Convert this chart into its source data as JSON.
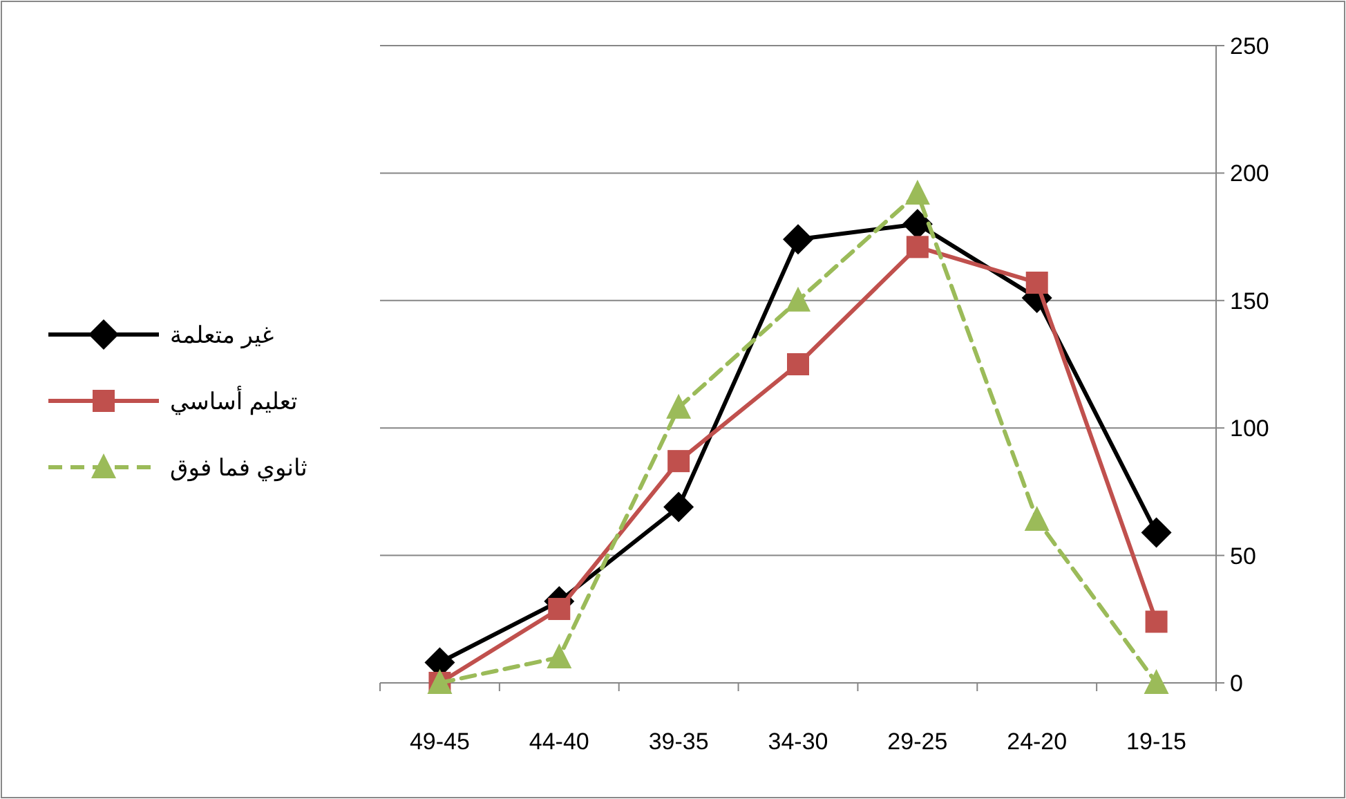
{
  "chart_data": {
    "type": "line",
    "categories": [
      "49-45",
      "44-40",
      "39-35",
      "34-30",
      "29-25",
      "24-20",
      "19-15"
    ],
    "series": [
      {
        "name": "غير متعلمة",
        "color": "#000000",
        "marker": "diamond",
        "line_style": "solid",
        "values": [
          8,
          32,
          69,
          174,
          180,
          151,
          59
        ]
      },
      {
        "name": "تعليم أساسي",
        "color": "#c0504d",
        "marker": "square",
        "line_style": "solid",
        "values": [
          0,
          29,
          87,
          125,
          171,
          157,
          24
        ]
      },
      {
        "name": "ثانوي فما فوق",
        "color": "#9bbb59",
        "marker": "triangle",
        "line_style": "dashed",
        "values": [
          0,
          10,
          108,
          150,
          192,
          64,
          0
        ]
      }
    ],
    "ylim": [
      0,
      250
    ],
    "yticks": [
      0,
      50,
      100,
      150,
      200,
      250
    ],
    "grid": "y",
    "legend": "left"
  }
}
